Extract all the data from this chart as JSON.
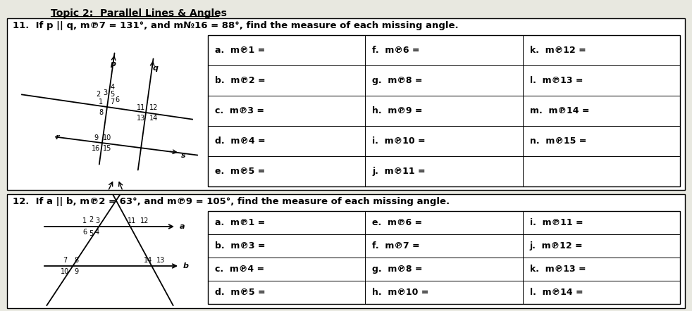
{
  "title": "Topic 2:  Parallel Lines & Angles",
  "q11_header": "11.  If p || q, m℗7 = 131°, and m№16 = 88°, find the measure of each missing angle.",
  "q12_header": "12.  If a || b, m℗2 = 63°, and m℗9 = 105°, find the measure of each missing angle.",
  "q11_rows": [
    [
      "a.  m℗1 =",
      "f.  m℗6 =",
      "k.  m℗12 ="
    ],
    [
      "b.  m℗2 =",
      "g.  m℗8 =",
      "l.  m℗13 ="
    ],
    [
      "c.  m℗3 =",
      "h.  m℗9 =",
      "m.  m℗14 ="
    ],
    [
      "d.  m℗4 =",
      "i.  m℗10 =",
      "n.  m℗15 ="
    ],
    [
      "e.  m℗5 =",
      "j.  m℗11 =",
      ""
    ]
  ],
  "q12_rows": [
    [
      "a.  m℗1 =",
      "e.  m℗6 =",
      "i.  m℗11 ="
    ],
    [
      "b.  m℗3 =",
      "f.  m℗7 =",
      "j.  m℗12 ="
    ],
    [
      "c.  m℗4 =",
      "g.  m℗8 =",
      "k.  m℗13 ="
    ],
    [
      "d.  m℗5 =",
      "h.  m℗10 =",
      "l.  m℗14 ="
    ]
  ],
  "bg_color": "#e8e8e0",
  "box_color": "#ffffff",
  "line_color": "#000000",
  "title_fontsize": 10.0,
  "header_fontsize": 9.5,
  "cell_fontsize": 9.0,
  "diagram_fontsize": 7.0,
  "label_fontsize": 8.0
}
